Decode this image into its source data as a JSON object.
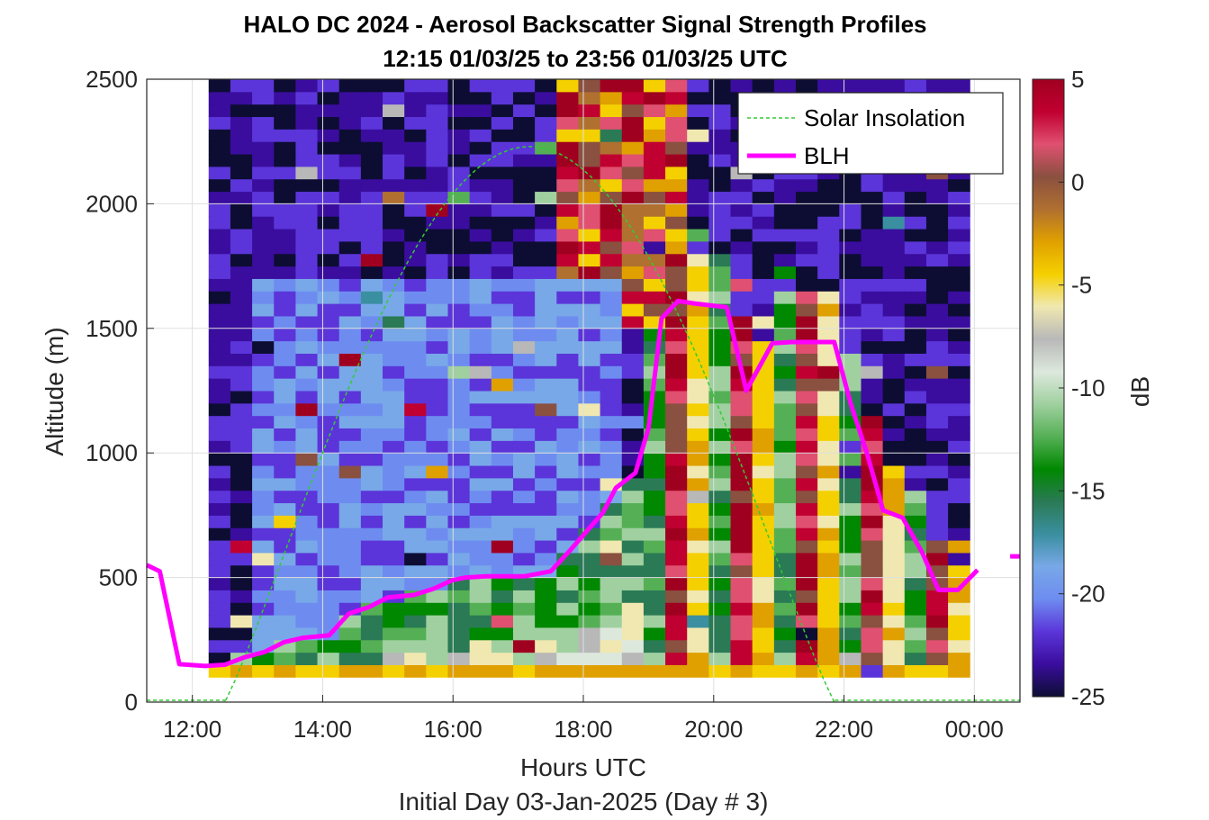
{
  "chart_data": {
    "type": "heatmap",
    "title": "HALO DC 2024 - Aerosol Backscatter Signal Strength Profiles",
    "subtitle": "12:15 01/03/25 to 23:56 01/03/25  UTC",
    "xlabel": "Hours UTC",
    "xlabel2": "Initial Day 03-Jan-2025 (Day # 3)",
    "ylabel": "Altitude (m)",
    "colorbar_label": "dB",
    "xlim_hours": [
      11.3,
      24.7
    ],
    "ylim": [
      0,
      2500
    ],
    "x_ticks": [
      {
        "hour": 12,
        "label": "12:00"
      },
      {
        "hour": 14,
        "label": "14:00"
      },
      {
        "hour": 16,
        "label": "16:00"
      },
      {
        "hour": 18,
        "label": "18:00"
      },
      {
        "hour": 20,
        "label": "20:00"
      },
      {
        "hour": 22,
        "label": "22:00"
      },
      {
        "hour": 24,
        "label": "00:00"
      }
    ],
    "y_ticks": [
      0,
      500,
      1000,
      1500,
      2000,
      2500
    ],
    "colorbar_ticks": [
      5,
      0,
      -5,
      -10,
      -15,
      -20,
      -25
    ],
    "clim": [
      -25,
      5
    ],
    "grid": true,
    "legend_position": "top-right",
    "legend": [
      {
        "label": "Solar Insolation",
        "style": "dashed",
        "color": "#33cc33"
      },
      {
        "label": "BLH",
        "style": "solid",
        "color": "#ff00ff"
      }
    ],
    "data_time_range_hours": [
      12.25,
      23.93
    ],
    "altitude_bin_m": 50,
    "colormap": [
      "#0d0d33",
      "#3a0d9e",
      "#5b35d9",
      "#6e8cf0",
      "#78a8e8",
      "#3a8fa0",
      "#2a7a55",
      "#008800",
      "#55b055",
      "#a0d0a0",
      "#dde8dd",
      "#b8b8b8",
      "#f0e8b0",
      "#f5d000",
      "#e0a000",
      "#b07030",
      "#8a5040",
      "#e05070",
      "#c00030",
      "#a00020"
    ],
    "series": [
      {
        "name": "BLH",
        "x_hours": [
          11.3,
          11.5,
          11.8,
          12.2,
          12.5,
          12.8,
          13.1,
          13.4,
          13.7,
          14.1,
          14.4,
          14.7,
          15.0,
          15.4,
          15.7,
          16.0,
          16.2,
          16.5,
          16.8,
          17.1,
          17.5,
          17.8,
          18.1,
          18.3,
          18.5,
          18.8,
          19.0,
          19.2,
          19.45,
          19.7,
          20.2,
          20.5,
          20.9,
          21.2,
          21.5,
          21.85,
          22.1,
          22.35,
          22.6,
          22.9,
          23.2,
          23.45,
          23.75,
          24.05
        ],
        "y_m": [
          550,
          525,
          152,
          145,
          150,
          180,
          200,
          240,
          258,
          268,
          355,
          380,
          420,
          430,
          455,
          490,
          500,
          505,
          505,
          505,
          525,
          610,
          700,
          760,
          860,
          920,
          1100,
          1540,
          1610,
          1600,
          1585,
          1250,
          1440,
          1445,
          1445,
          1445,
          1200,
          1000,
          770,
          740,
          600,
          450,
          450,
          530
        ]
      },
      {
        "name": "BLH (edge segment)",
        "x_hours": [
          24.55,
          24.7
        ],
        "y_m": [
          585,
          585
        ]
      },
      {
        "name": "Solar Insolation",
        "sunrise_hour": 12.5,
        "sunset_hour": 21.85,
        "peak_hour": 17.2,
        "peak_altitude_m": 2230
      }
    ]
  }
}
